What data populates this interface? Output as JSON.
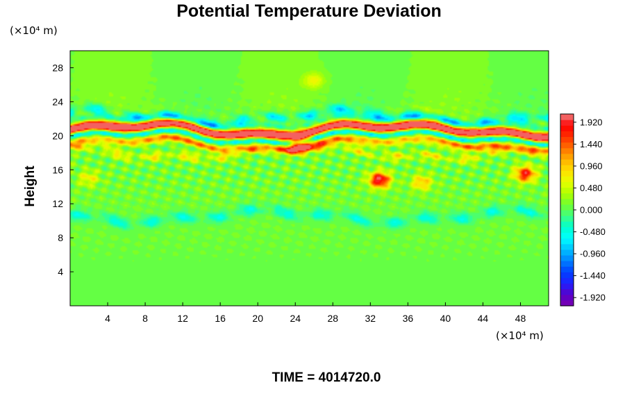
{
  "chart_data": {
    "type": "heatmap",
    "title": "Potential Temperature Deviation",
    "ylabel": "Height",
    "xlabel": "",
    "x_unit_label": "(×10⁴ m)",
    "y_unit_label": "(×10⁴ m)",
    "xlim": [
      0,
      51
    ],
    "ylim": [
      0,
      30
    ],
    "x_ticks": [
      "4",
      "8",
      "12",
      "16",
      "20",
      "24",
      "28",
      "32",
      "36",
      "40",
      "44",
      "48"
    ],
    "x_tick_values": [
      4,
      8,
      12,
      16,
      20,
      24,
      28,
      32,
      36,
      40,
      44,
      48
    ],
    "y_ticks": [
      "4",
      "8",
      "12",
      "16",
      "20",
      "24",
      "28"
    ],
    "y_tick_values": [
      4,
      8,
      12,
      16,
      20,
      24,
      28
    ],
    "grid": false,
    "colorbar": {
      "labels": [
        "1.920",
        "1.440",
        "0.960",
        "0.480",
        "0.000",
        "-0.480",
        "-0.960",
        "-1.440",
        "-1.920"
      ],
      "values": [
        1.92,
        1.44,
        0.96,
        0.48,
        0.0,
        -0.48,
        -0.96,
        -1.44,
        -1.92
      ],
      "range": [
        -2.1,
        2.1
      ],
      "levels": 34,
      "colors": [
        "#7a00b0",
        "#5a00c8",
        "#2020ff",
        "#0040ff",
        "#0080ff",
        "#00c0ff",
        "#00ffff",
        "#00ffd0",
        "#40ff80",
        "#70ff30",
        "#b0ff00",
        "#e8ff00",
        "#ffe000",
        "#ffb000",
        "#ff7000",
        "#ff3000",
        "#ff0000",
        "#f08080"
      ]
    },
    "field_features": [
      {
        "kind": "band",
        "y_center": 20.3,
        "thickness": 2.6,
        "amplitude": 2.1,
        "description_ref": "main alternating layer"
      },
      {
        "kind": "band",
        "y_center": 22.2,
        "thickness": 1.2,
        "amplitude": -1.0
      },
      {
        "kind": "band",
        "y_center": 18.0,
        "thickness": 1.0,
        "amplitude": 0.7
      },
      {
        "kind": "band",
        "y_center": 10.5,
        "thickness": 1.4,
        "amplitude": -0.6
      },
      {
        "kind": "blob",
        "x": 33.0,
        "y": 14.8,
        "amplitude": 2.0
      },
      {
        "kind": "blob",
        "x": 48.5,
        "y": 15.5,
        "amplitude": 1.7
      },
      {
        "kind": "blob",
        "x": 24.5,
        "y": 19.0,
        "amplitude": 1.6
      },
      {
        "kind": "blob",
        "x": 26.0,
        "y": 26.5,
        "amplitude": 0.55
      },
      {
        "kind": "blob",
        "x": 2.0,
        "y": 15.0,
        "amplitude": 0.6
      },
      {
        "kind": "blob",
        "x": 37.5,
        "y": 14.5,
        "amplitude": 0.9
      }
    ]
  },
  "footer": {
    "time_label": "TIME = 4014720.0"
  }
}
